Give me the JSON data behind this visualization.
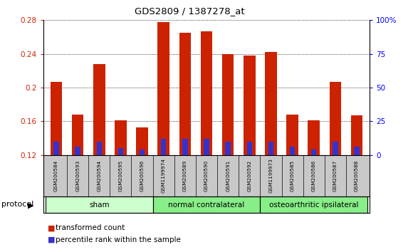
{
  "title": "GDS2809 / 1387278_at",
  "samples": [
    "GSM200584",
    "GSM200593",
    "GSM200594",
    "GSM200595",
    "GSM200596",
    "GSM1199974",
    "GSM200589",
    "GSM200590",
    "GSM200591",
    "GSM200592",
    "GSM1199973",
    "GSM200585",
    "GSM200586",
    "GSM200587",
    "GSM200588"
  ],
  "red_values": [
    0.207,
    0.168,
    0.228,
    0.161,
    0.153,
    0.278,
    0.265,
    0.267,
    0.24,
    0.238,
    0.242,
    0.168,
    0.161,
    0.207,
    0.167
  ],
  "blue_values_pct": [
    10,
    6,
    10,
    5,
    4,
    12,
    12,
    12,
    10,
    10,
    10,
    6,
    4,
    10,
    6
  ],
  "groups": [
    {
      "label": "sham",
      "start": 0,
      "end": 5
    },
    {
      "label": "normal contralateral",
      "start": 5,
      "end": 10
    },
    {
      "label": "osteoarthritic ipsilateral",
      "start": 10,
      "end": 15
    }
  ],
  "group_colors": [
    "#ccffcc",
    "#88ee88",
    "#88ee88"
  ],
  "ylim_left": [
    0.12,
    0.28
  ],
  "ylim_right": [
    0,
    100
  ],
  "yticks_left": [
    0.12,
    0.16,
    0.2,
    0.24,
    0.28
  ],
  "ytick_labels_left": [
    "0.12",
    "0.16",
    "0.2",
    "0.24",
    "0.28"
  ],
  "yticks_right": [
    0,
    25,
    50,
    75,
    100
  ],
  "ytick_labels_right": [
    "0",
    "25",
    "50",
    "75",
    "100%"
  ],
  "bar_width": 0.55,
  "red_color": "#cc2200",
  "blue_color": "#3333cc",
  "plot_bg": "#ffffff",
  "label_bg": "#c8c8c8",
  "protocol_label": "protocol",
  "legend_items": [
    {
      "color": "#cc2200",
      "label": "transformed count"
    },
    {
      "color": "#3333cc",
      "label": "percentile rank within the sample"
    }
  ]
}
